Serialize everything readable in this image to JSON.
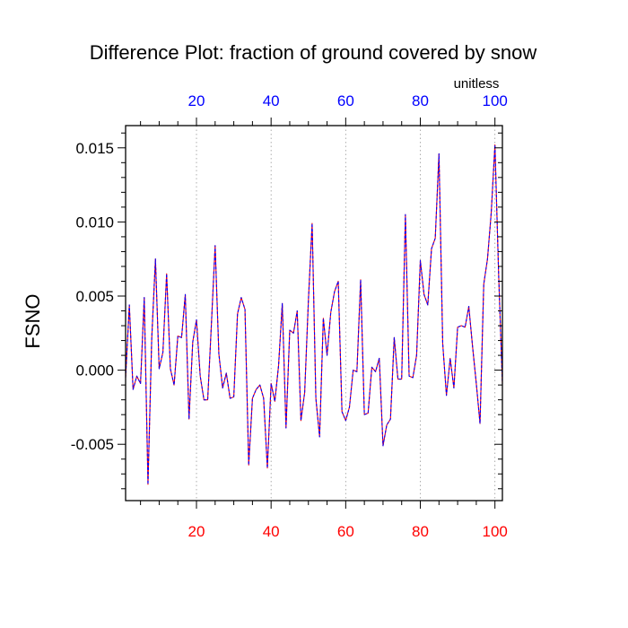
{
  "chart_data": {
    "type": "line",
    "title": "Difference Plot: fraction of ground covered by snow",
    "ylabel": "FSNO",
    "units_label": "unitless",
    "xlim": [
      1,
      102
    ],
    "ylim": [
      -0.0088,
      0.0165
    ],
    "yticks": [
      -0.005,
      0.0,
      0.005,
      0.01,
      0.015
    ],
    "ytick_labels": [
      "-0.005",
      "0.000",
      "0.005",
      "0.010",
      "0.015"
    ],
    "xticks": [
      20,
      40,
      60,
      80,
      100
    ],
    "xtick_labels": [
      "20",
      "40",
      "60",
      "80",
      "100"
    ],
    "grid": "vertical dotted",
    "colors": {
      "bottom_tick_labels": "#ff0000",
      "top_tick_labels": "#0000ff",
      "series_a": "#ff0000",
      "series_b": "#0000ff",
      "grid": "#9a9a9a",
      "axes": "#000000"
    },
    "series": [
      {
        "values": [
          -0.0005,
          0.0044,
          -0.0013,
          -0.0004,
          -0.0009,
          0.0049,
          -0.0077,
          0.0021,
          0.0075,
          0.0001,
          0.0012,
          0.0065,
          0.0001,
          -0.001,
          0.0023,
          0.0022,
          0.0051,
          -0.0033,
          0.0019,
          0.0034,
          -0.0004,
          -0.002,
          -0.002,
          0.0031,
          0.0084,
          0.0011,
          -0.0012,
          -0.0002,
          -0.0019,
          -0.0018,
          0.0038,
          0.0049,
          0.0041,
          -0.0064,
          -0.0019,
          -0.0013,
          -0.001,
          -0.0019,
          -0.0066,
          -0.0009,
          -0.0021,
          0.0003,
          0.0045,
          -0.0039,
          0.0027,
          0.0025,
          0.004,
          -0.0034,
          -0.0015,
          0.0047,
          0.0099,
          -0.0019,
          -0.0045,
          0.0035,
          0.001,
          0.0039,
          0.0053,
          0.006,
          -0.0028,
          -0.0034,
          -0.0025,
          0.0,
          -0.0001,
          0.0061,
          -0.003,
          -0.0029,
          0.0002,
          -0.0001,
          0.0008,
          -0.0051,
          -0.0037,
          -0.0033,
          0.0022,
          -0.0006,
          -0.0006,
          0.0105,
          -0.0004,
          -0.0005,
          0.001,
          0.0074,
          0.0051,
          0.0044,
          0.0082,
          0.0089,
          0.0146,
          0.0018,
          -0.0017,
          0.0008,
          -0.0012,
          0.0029,
          0.003,
          0.0029,
          0.0043,
          0.0016,
          -0.0009,
          -0.0036,
          0.0058,
          0.0075,
          0.0106,
          0.0152,
          0.0064,
          -0.0009
        ]
      }
    ]
  }
}
